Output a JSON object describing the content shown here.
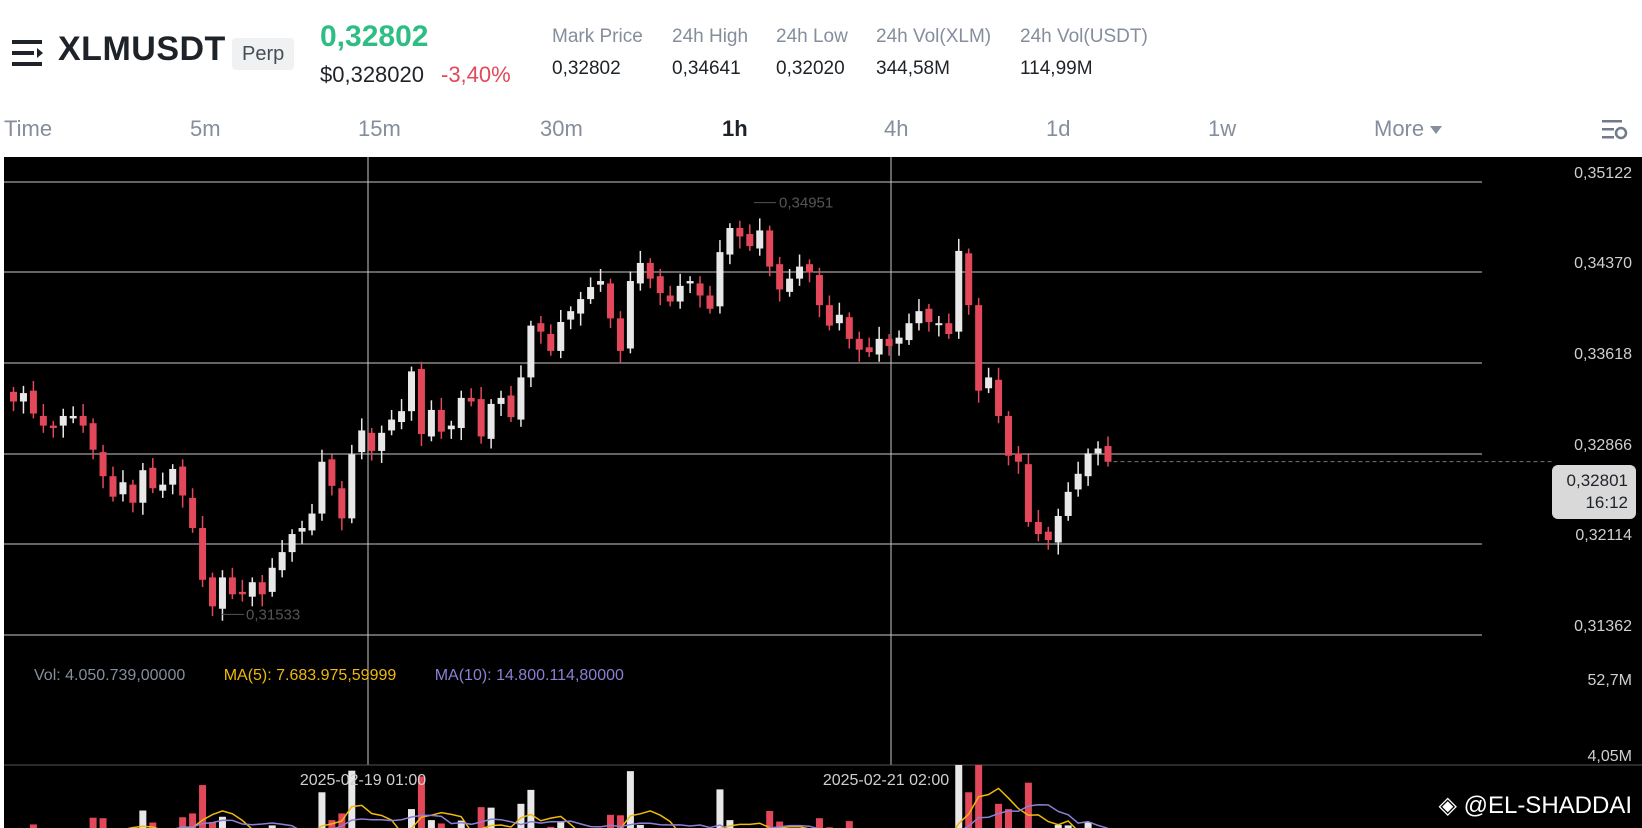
{
  "header": {
    "symbol": "XLMUSDT",
    "badge": "Perp",
    "last_price": "0,32802",
    "usd_price": "$0,328020",
    "change_pct": "-3,40%",
    "stats": [
      {
        "label": "Mark Price",
        "value": "0,32802"
      },
      {
        "label": "24h High",
        "value": "0,34641"
      },
      {
        "label": "24h Low",
        "value": "0,32020"
      },
      {
        "label": "24h Vol(XLM)",
        "value": "344,58M"
      },
      {
        "label": "24h Vol(USDT)",
        "value": "114,99M"
      }
    ]
  },
  "tabs": {
    "items": [
      "Time",
      "5m",
      "15m",
      "30m",
      "1h",
      "4h",
      "1d",
      "1w",
      "More"
    ],
    "active": "1h"
  },
  "chart": {
    "price_axis": [
      "0,35122",
      "0,34370",
      "0,33618",
      "0,32866",
      "0,32114",
      "0,31362"
    ],
    "current_price": "0,32801",
    "countdown": "16:12",
    "high_marker": "0,34951",
    "low_marker": "0,31533",
    "volume_axis": [
      "52,7M",
      "4,05M"
    ],
    "time_axis": [
      "2025-02-19 01:00",
      "2025-02-21 02:00"
    ],
    "vol_label": "Vol: 4.050.739,00000",
    "ma5_label": "MA(5): 7.683.975,59999",
    "ma10_label": "MA(10): 14.800.114,80000",
    "watermark": "@EL-SHADDAI",
    "colors": {
      "up": "#e8e8e8",
      "down": "#e2485a",
      "ma5": "#f0b90b",
      "ma10": "#8c7fd4",
      "vol_label": "#848e9c"
    }
  },
  "chart_data": {
    "type": "candlestick",
    "interval": "1h",
    "y_axis_ticks": [
      0.35122,
      0.3437,
      0.33618,
      0.32866,
      0.32114,
      0.31362
    ],
    "ylim": [
      0.311,
      0.354
    ],
    "high_label": 0.34951,
    "low_label": 0.31533,
    "current_price": 0.32801,
    "x_axis_labels": [
      "2025-02-19 01:00",
      "2025-02-21 02:00"
    ],
    "volume_ticks": [
      "52,7M",
      "4,05M"
    ],
    "candles_close": [
      0.333,
      0.3337,
      0.332,
      0.331,
      0.3308,
      0.3318,
      0.3318,
      0.331,
      0.329,
      0.3268,
      0.3251,
      0.3263,
      0.3246,
      0.3273,
      0.3258,
      0.3261,
      0.3274,
      0.3252,
      0.3225,
      0.3182,
      0.316,
      0.3184,
      0.317,
      0.317,
      0.318,
      0.317,
      0.3192,
      0.3205,
      0.322,
      0.3225,
      0.3237,
      0.328,
      0.326,
      0.3233,
      0.3286,
      0.3306,
      0.3289,
      0.3304,
      0.3315,
      0.3322,
      0.3355,
      0.3303,
      0.3323,
      0.3305,
      0.331,
      0.3333,
      0.333,
      0.3301,
      0.3328,
      0.3333,
      0.3317,
      0.335,
      0.3393,
      0.3388,
      0.3372,
      0.3396,
      0.3405,
      0.3415,
      0.3425,
      0.343,
      0.3399,
      0.3372,
      0.343,
      0.3445,
      0.3432,
      0.342,
      0.3413,
      0.3426,
      0.343,
      0.3418,
      0.3407,
      0.3454,
      0.3474,
      0.3467,
      0.3459,
      0.3472,
      0.3442,
      0.3423,
      0.3432,
      0.3442,
      0.3437,
      0.341,
      0.3393,
      0.3402,
      0.3382,
      0.3373,
      0.3371,
      0.3382,
      0.3376,
      0.3383,
      0.3395,
      0.3405,
      0.3396,
      0.3395,
      0.3386,
      0.3455,
      0.341,
      0.3339,
      0.335,
      0.3318,
      0.3285,
      0.328,
      0.323,
      0.322,
      0.3215,
      0.3235,
      0.3255,
      0.327,
      0.3287,
      0.3291,
      0.328
    ]
  }
}
